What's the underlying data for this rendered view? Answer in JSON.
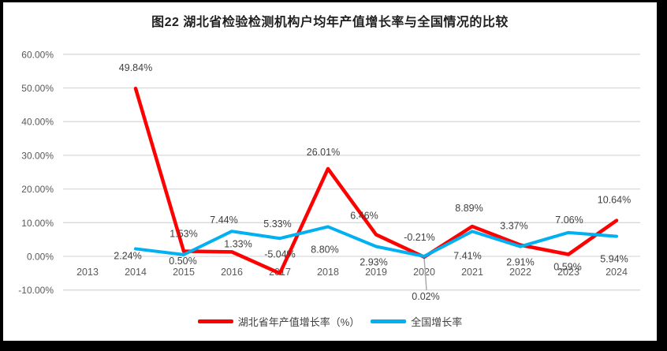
{
  "chart_data": {
    "type": "line",
    "title": "图22 湖北省检验检测机构户均年产值增长率与全国情况的比较",
    "categories": [
      "2013",
      "2014",
      "2015",
      "2016",
      "2017",
      "2018",
      "2019",
      "2020",
      "2021",
      "2022",
      "2023",
      "2024"
    ],
    "y_axis": {
      "min": -10,
      "max": 60,
      "tick_step": 10,
      "tick_values": [
        60,
        50,
        40,
        30,
        20,
        10,
        0,
        -10
      ],
      "tick_labels": [
        "60.00%",
        "50.00%",
        "40.00%",
        "30.00%",
        "20.00%",
        "10.00%",
        "0.00%",
        "-10.00%"
      ]
    },
    "grid": true,
    "legend_position": "bottom",
    "series": [
      {
        "name": "湖北省年产值增长率（%）",
        "color": "#ff0000",
        "values": [
          null,
          49.84,
          1.53,
          1.33,
          -5.04,
          26.01,
          6.46,
          -0.21,
          8.89,
          3.37,
          0.59,
          10.64
        ],
        "labels": [
          null,
          "49.84%",
          "1.53%",
          "1.33%",
          "-5.04%",
          "26.01%",
          "6.46%",
          "-0.21%",
          "8.89%",
          "3.37%",
          "0.59%",
          "10.64%"
        ],
        "label_offsets": [
          null,
          [
            0,
            -22
          ],
          [
            0,
            -18
          ],
          [
            8,
            -6
          ],
          [
            0,
            -20
          ],
          [
            -6,
            -17
          ],
          [
            -15,
            -20
          ],
          [
            -6,
            -21
          ],
          [
            -4,
            -19
          ],
          [
            -8,
            -20
          ],
          [
            -1,
            20
          ],
          [
            -3,
            -22
          ]
        ]
      },
      {
        "name": "全国增长率",
        "color": "#00b0f0",
        "values": [
          null,
          2.24,
          0.5,
          7.44,
          5.33,
          8.8,
          2.93,
          0.02,
          7.41,
          2.91,
          7.06,
          5.94
        ],
        "labels": [
          null,
          "2.24%",
          "0.50%",
          "7.44%",
          "5.33%",
          "8.80%",
          "2.93%",
          "0.02%",
          "7.41%",
          "2.91%",
          "7.06%",
          "5.94%"
        ],
        "label_offsets": [
          null,
          [
            -10,
            13
          ],
          [
            -1,
            12
          ],
          [
            -10,
            -10
          ],
          [
            -3,
            -14
          ],
          [
            -4,
            33
          ],
          [
            -3,
            24
          ],
          [
            2,
            55
          ],
          [
            -6,
            35
          ],
          [
            0,
            24
          ],
          [
            1,
            -12
          ],
          [
            -3,
            33
          ]
        ],
        "leader_line_index": 7
      }
    ],
    "colors": {
      "grid": "#d9d9d9",
      "axis_text": "#595959",
      "data_label_text": "#404040",
      "leader_line": "#a6a6a6",
      "title_text": "#1f1f1f",
      "frame": "#000000",
      "plot_background": "#ffffff"
    }
  }
}
